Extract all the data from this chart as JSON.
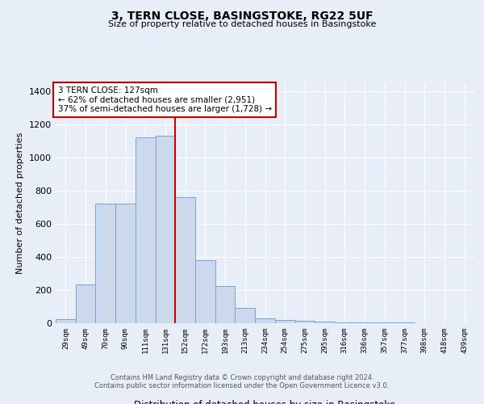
{
  "title": "3, TERN CLOSE, BASINGSTOKE, RG22 5UF",
  "subtitle": "Size of property relative to detached houses in Basingstoke",
  "xlabel": "Distribution of detached houses by size in Basingstoke",
  "ylabel": "Number of detached properties",
  "bar_labels": [
    "29sqm",
    "49sqm",
    "70sqm",
    "90sqm",
    "111sqm",
    "131sqm",
    "152sqm",
    "172sqm",
    "193sqm",
    "213sqm",
    "234sqm",
    "254sqm",
    "275sqm",
    "295sqm",
    "316sqm",
    "336sqm",
    "357sqm",
    "377sqm",
    "398sqm",
    "418sqm",
    "439sqm"
  ],
  "bar_values": [
    25,
    235,
    720,
    720,
    1120,
    1130,
    760,
    380,
    225,
    95,
    30,
    20,
    15,
    10,
    5,
    5,
    3,
    3,
    2,
    2,
    2
  ],
  "bar_color": "#ccd9ed",
  "bar_edge_color": "#7ca3cc",
  "vline_x": 5.5,
  "vline_color": "#cc0000",
  "annotation_text": "3 TERN CLOSE: 127sqm\n← 62% of detached houses are smaller (2,951)\n37% of semi-detached houses are larger (1,728) →",
  "annotation_box_color": "white",
  "annotation_box_edge": "#cc0000",
  "ylim": [
    0,
    1450
  ],
  "yticks": [
    0,
    200,
    400,
    600,
    800,
    1000,
    1200,
    1400
  ],
  "bg_color": "#e8eef8",
  "plot_bg_color": "#e8eef8",
  "footer1": "Contains HM Land Registry data © Crown copyright and database right 2024.",
  "footer2": "Contains public sector information licensed under the Open Government Licence v3.0."
}
